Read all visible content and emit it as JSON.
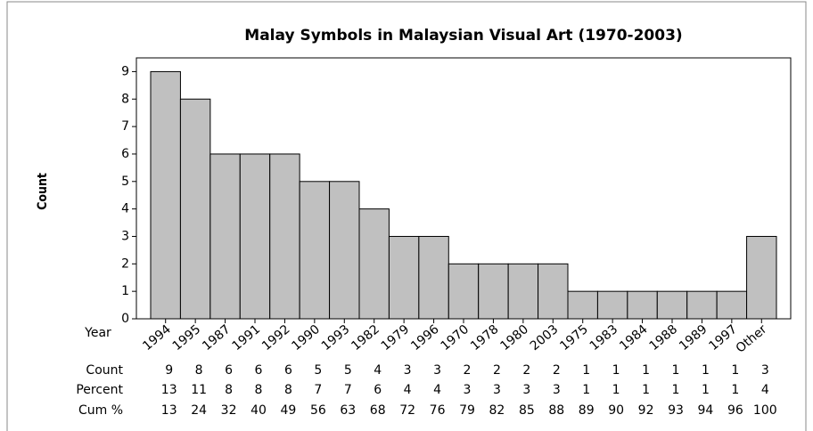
{
  "chart_data": {
    "type": "bar",
    "title": "Malay Symbols in Malaysian Visual Art (1970-2003)",
    "x_label": "Year",
    "y_label": "Count",
    "categories": [
      "1994",
      "1995",
      "1987",
      "1991",
      "1992",
      "1990",
      "1993",
      "1982",
      "1979",
      "1996",
      "1970",
      "1978",
      "1980",
      "2003",
      "1975",
      "1983",
      "1984",
      "1988",
      "1989",
      "1997",
      "Other"
    ],
    "values": [
      9,
      8,
      6,
      6,
      6,
      5,
      5,
      4,
      3,
      3,
      2,
      2,
      2,
      2,
      1,
      1,
      1,
      1,
      1,
      1,
      3
    ],
    "percent": [
      13,
      11,
      8,
      8,
      8,
      7,
      7,
      6,
      4,
      4,
      3,
      3,
      3,
      3,
      1,
      1,
      1,
      1,
      1,
      1,
      4
    ],
    "cum_percent": [
      13,
      24,
      32,
      40,
      49,
      56,
      63,
      68,
      72,
      76,
      79,
      82,
      85,
      88,
      89,
      90,
      92,
      93,
      94,
      96,
      100
    ],
    "row_labels": [
      "Count",
      "Percent",
      "Cum %"
    ],
    "color": "#c0c0c0",
    "ylim": [
      0,
      9.5
    ],
    "yticks": [
      0,
      1,
      2,
      3,
      4,
      5,
      6,
      7,
      8,
      9
    ]
  }
}
